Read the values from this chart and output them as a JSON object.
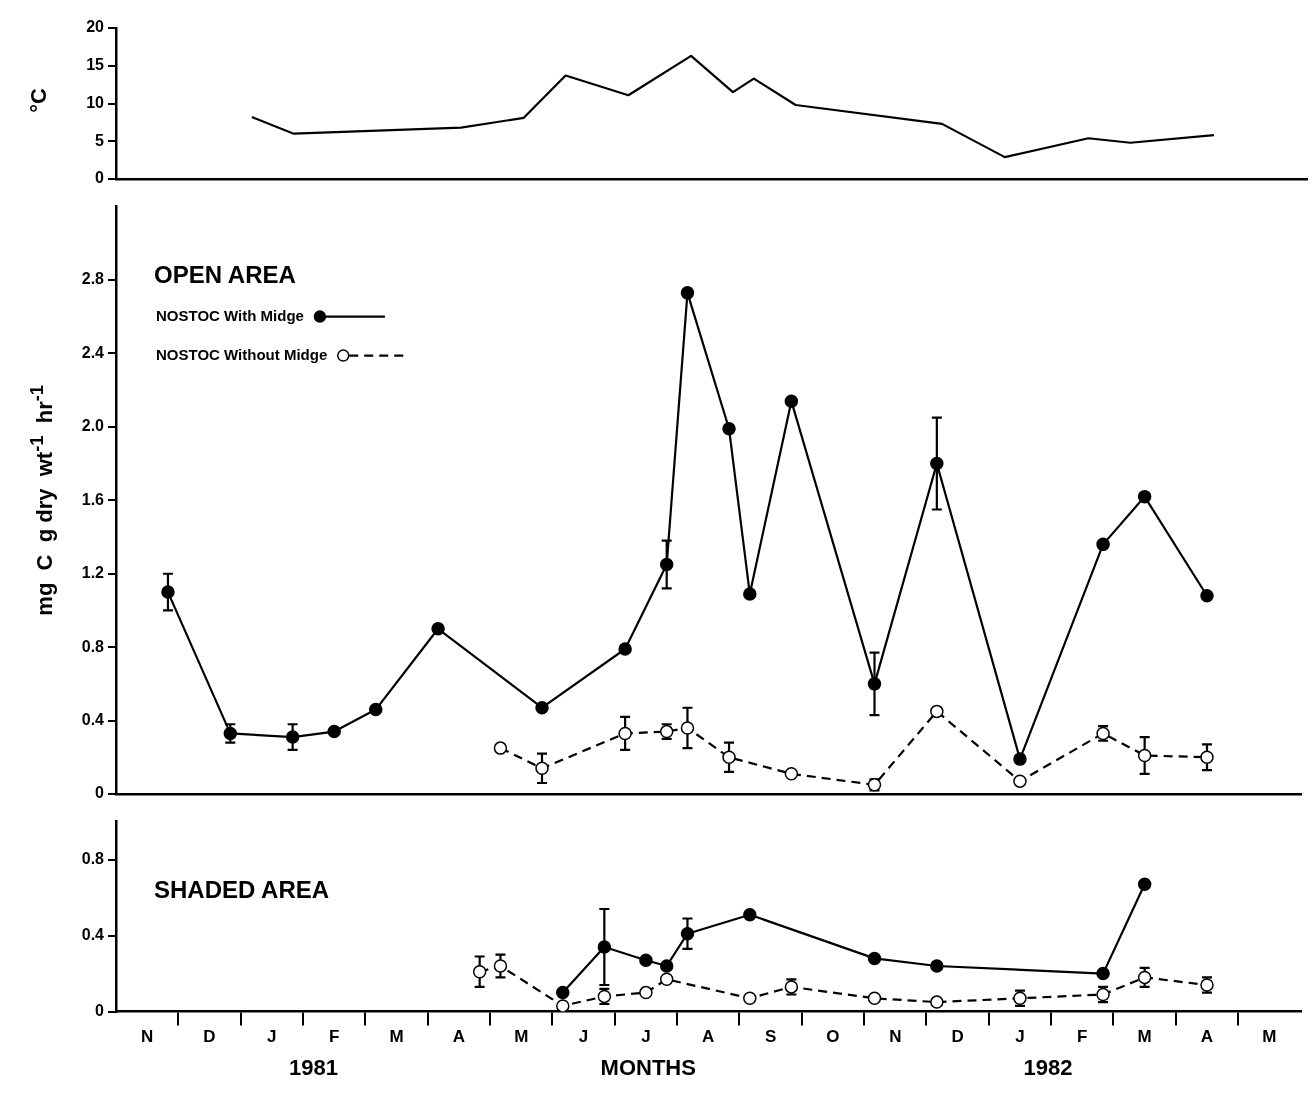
{
  "chart_data": [
    {
      "type": "line",
      "ylabel": "°C",
      "categories": [
        null,
        null,
        null,
        null,
        null,
        null,
        null,
        null,
        null,
        null,
        null,
        null,
        null,
        null,
        null,
        null,
        null,
        null,
        null,
        null,
        null,
        null,
        null,
        null,
        null,
        null,
        null,
        null,
        null,
        null,
        null,
        null,
        null,
        null,
        null,
        null,
        null,
        null,
        null,
        null,
        null,
        null,
        null,
        null,
        null,
        null,
        null,
        null,
        null,
        null,
        null,
        null,
        null,
        null,
        null,
        null,
        null
      ],
      "ylim": [
        0,
        20
      ],
      "yticks": [
        0,
        5,
        10,
        15,
        20
      ],
      "tick_labels": "y",
      "grid": false,
      "legend": false,
      "marker": "none",
      "series": [
        {
          "color": "#000000",
          "line_style": "solid",
          "values": [
            null,
            null,
            null,
            null,
            null,
            null,
            8.2,
            null,
            6.0,
            null,
            null,
            null,
            null,
            null,
            null,
            null,
            6.8,
            null,
            null,
            8.1,
            null,
            13.7,
            null,
            null,
            11.1,
            null,
            null,
            16.3,
            null,
            11.5,
            13.3,
            null,
            9.8,
            null,
            null,
            null,
            null,
            null,
            null,
            7.3,
            null,
            null,
            2.9,
            null,
            null,
            null,
            5.4,
            null,
            4.8,
            null,
            null,
            null,
            5.8,
            null,
            null,
            null,
            null
          ]
        }
      ]
    },
    {
      "type": "line",
      "title": "OPEN AREA",
      "ylabel": "mg  C  g dry  wt$^{-1}$  hr$^{-1}$",
      "categories": [
        null,
        null,
        null,
        null,
        null,
        null,
        null,
        null,
        null,
        null,
        null,
        null,
        null,
        null,
        null,
        null,
        null,
        null,
        null,
        null,
        null,
        null,
        null,
        null,
        null,
        null,
        null,
        null,
        null,
        null,
        null,
        null,
        null,
        null,
        null,
        null,
        null,
        null,
        null,
        null,
        null,
        null,
        null,
        null,
        null,
        null,
        null,
        null,
        null,
        null,
        null,
        null,
        null,
        null,
        null,
        null,
        null
      ],
      "ylim": [
        0,
        3.2
      ],
      "yticks": [
        0,
        0.4,
        0.8,
        1.2,
        1.6,
        {
          "value": 2,
          "label": "2.0"
        },
        2.4,
        2.8
      ],
      "tick_labels": "y",
      "grid": false,
      "legend": "top left",
      "marker": "circle",
      "series": [
        {
          "name": "NOSTOC With Midge",
          "color": "#000000",
          "line_style": "solid",
          "values": [
            null,
            null,
            1.1,
            null,
            null,
            0.33,
            null,
            null,
            0.31,
            null,
            0.34,
            null,
            0.46,
            null,
            null,
            0.9,
            null,
            null,
            null,
            null,
            0.47,
            null,
            null,
            null,
            0.79,
            null,
            1.25,
            2.73,
            null,
            1.99,
            1.09,
            null,
            2.14,
            null,
            null,
            null,
            0.6,
            null,
            null,
            1.8,
            null,
            null,
            null,
            0.19,
            null,
            null,
            null,
            1.36,
            null,
            1.62,
            null,
            null,
            1.08,
            null,
            null,
            null,
            null
          ],
          "errors": [
            null,
            null,
            0.1,
            null,
            null,
            0.05,
            null,
            null,
            0.07,
            null,
            null,
            null,
            null,
            null,
            null,
            null,
            null,
            null,
            null,
            null,
            null,
            null,
            null,
            null,
            null,
            null,
            0.13,
            null,
            null,
            null,
            null,
            null,
            null,
            null,
            null,
            null,
            0.17,
            null,
            null,
            0.25,
            null,
            null,
            null,
            null,
            null,
            null,
            null,
            null,
            null,
            null,
            null,
            null,
            null,
            null,
            null,
            null,
            null
          ]
        },
        {
          "name": "NOSTOC Without Midge",
          "color": "#000000",
          "line_style": "dashed",
          "values": [
            null,
            null,
            null,
            null,
            null,
            null,
            null,
            null,
            null,
            null,
            null,
            null,
            null,
            null,
            null,
            null,
            null,
            null,
            0.25,
            null,
            0.14,
            null,
            null,
            null,
            0.33,
            null,
            0.34,
            0.36,
            null,
            0.2,
            null,
            null,
            0.11,
            null,
            null,
            null,
            0.05,
            null,
            null,
            0.45,
            null,
            null,
            null,
            0.07,
            null,
            null,
            null,
            0.33,
            null,
            0.21,
            null,
            null,
            0.2,
            null,
            null,
            null,
            null
          ],
          "errors": [
            null,
            null,
            null,
            null,
            null,
            null,
            null,
            null,
            null,
            null,
            null,
            null,
            null,
            null,
            null,
            null,
            null,
            null,
            null,
            null,
            0.08,
            null,
            null,
            null,
            0.09,
            null,
            0.04,
            0.11,
            null,
            0.08,
            null,
            null,
            null,
            null,
            null,
            null,
            0.03,
            null,
            null,
            null,
            null,
            null,
            null,
            null,
            null,
            null,
            null,
            0.04,
            null,
            0.1,
            null,
            null,
            0.07,
            null,
            null,
            null,
            null
          ]
        }
      ]
    },
    {
      "type": "line",
      "title": "SHADED AREA",
      "xlabel": "MONTHS",
      "annotations": [
        "1981",
        "1982"
      ],
      "categories": [
        null,
        "N",
        null,
        null,
        "D",
        null,
        null,
        "J",
        null,
        null,
        "F",
        null,
        null,
        "M",
        null,
        null,
        "A",
        null,
        null,
        "M",
        null,
        null,
        "J",
        null,
        null,
        "J",
        null,
        null,
        "A",
        null,
        null,
        "S",
        null,
        null,
        "O",
        null,
        null,
        "N",
        null,
        null,
        "D",
        null,
        null,
        "J",
        null,
        null,
        "F",
        null,
        null,
        "M",
        null,
        null,
        "A",
        null,
        null,
        "M",
        null
      ],
      "ylim": [
        0,
        1.0
      ],
      "yticks": [
        0,
        0.4,
        0.8
      ],
      "grid": false,
      "legend": false,
      "marker": "circle",
      "series": [
        {
          "color": "#000000",
          "line_style": "solid",
          "values": [
            null,
            null,
            null,
            null,
            null,
            null,
            null,
            null,
            null,
            null,
            null,
            null,
            null,
            null,
            null,
            null,
            null,
            null,
            null,
            null,
            null,
            0.1,
            null,
            0.34,
            null,
            0.27,
            0.24,
            0.41,
            null,
            null,
            0.51,
            null,
            null,
            null,
            null,
            null,
            0.28,
            null,
            null,
            0.24,
            null,
            null,
            null,
            null,
            null,
            null,
            null,
            0.2,
            null,
            0.67,
            null,
            null,
            null,
            null,
            null,
            null,
            null
          ],
          "errors": [
            null,
            null,
            null,
            null,
            null,
            null,
            null,
            null,
            null,
            null,
            null,
            null,
            null,
            null,
            null,
            null,
            null,
            null,
            null,
            null,
            null,
            null,
            null,
            0.2,
            null,
            null,
            null,
            0.08,
            null,
            null,
            null,
            null,
            null,
            null,
            null,
            null,
            null,
            null,
            null,
            null,
            null,
            null,
            null,
            null,
            null,
            null,
            null,
            null,
            null,
            null,
            null,
            null,
            null,
            null,
            null,
            null,
            null
          ]
        },
        {
          "color": "#000000",
          "line_style": "dashed",
          "values": [
            null,
            null,
            null,
            null,
            null,
            null,
            null,
            null,
            null,
            null,
            null,
            null,
            null,
            null,
            null,
            null,
            null,
            0.21,
            0.24,
            null,
            null,
            0.03,
            null,
            0.08,
            null,
            0.1,
            0.17,
            null,
            null,
            null,
            0.07,
            null,
            0.13,
            null,
            null,
            null,
            0.07,
            null,
            null,
            0.05,
            null,
            null,
            null,
            0.07,
            null,
            null,
            null,
            0.09,
            null,
            0.18,
            null,
            null,
            0.14,
            null,
            null,
            null,
            null
          ],
          "errors": [
            null,
            null,
            null,
            null,
            null,
            null,
            null,
            null,
            null,
            null,
            null,
            null,
            null,
            null,
            null,
            null,
            null,
            0.08,
            0.06,
            null,
            null,
            null,
            null,
            0.04,
            null,
            null,
            null,
            null,
            null,
            null,
            null,
            null,
            0.04,
            null,
            null,
            null,
            null,
            null,
            null,
            null,
            null,
            null,
            null,
            0.04,
            null,
            null,
            null,
            0.04,
            null,
            0.05,
            null,
            null,
            0.04,
            null,
            null,
            null,
            null
          ]
        }
      ]
    }
  ]
}
